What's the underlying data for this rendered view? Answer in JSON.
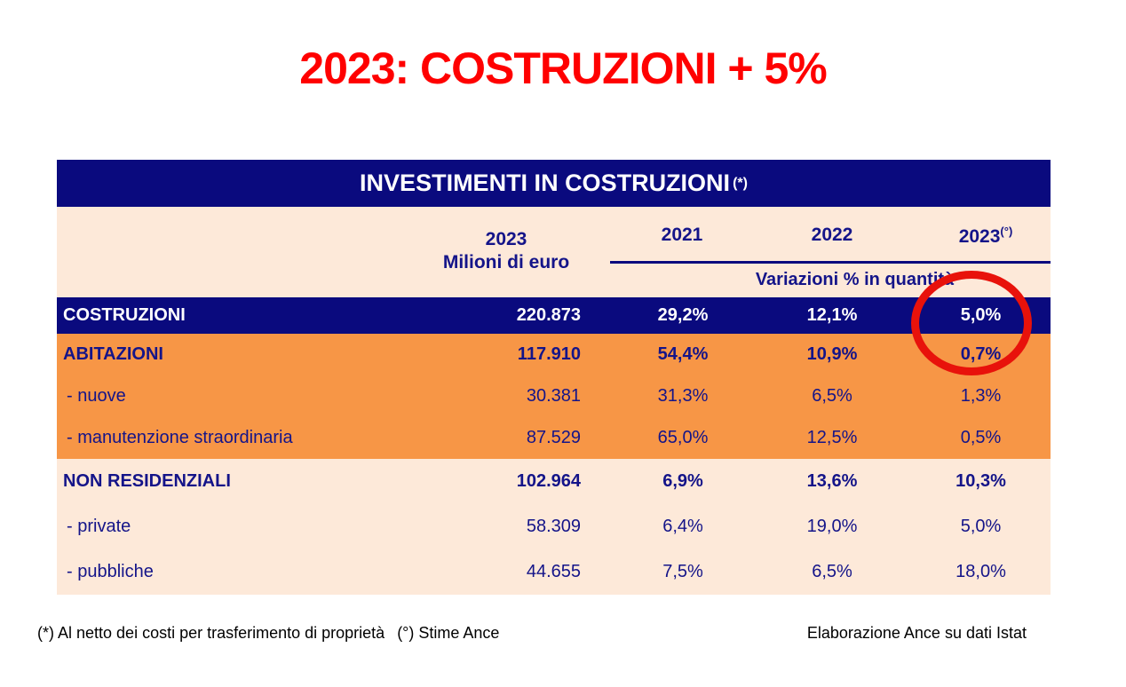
{
  "title": "2023: COSTRUZIONI + 5%",
  "table": {
    "title": "INVESTIMENTI IN COSTRUZIONI",
    "title_note": "(*)",
    "euro_header_line1": "2023",
    "euro_header_line2": "Milioni di euro",
    "year_2021": "2021",
    "year_2022": "2022",
    "year_2023": "2023",
    "year_2023_note": "(°)",
    "variation_label": "Variazioni % in quantità",
    "rows": [
      {
        "label": "COSTRUZIONI",
        "milioni": "220.873",
        "v2021": "29,2%",
        "v2022": "12,1%",
        "v2023": "5,0%"
      },
      {
        "label": "ABITAZIONI",
        "milioni": "117.910",
        "v2021": "54,4%",
        "v2022": "10,9%",
        "v2023": "0,7%"
      },
      {
        "label": "- nuove",
        "milioni": "30.381",
        "v2021": "31,3%",
        "v2022": "6,5%",
        "v2023": "1,3%"
      },
      {
        "label": "- manutenzione straordinaria",
        "milioni": "87.529",
        "v2021": "65,0%",
        "v2022": "12,5%",
        "v2023": "0,5%"
      },
      {
        "label": "NON RESIDENZIALI",
        "milioni": "102.964",
        "v2021": "6,9%",
        "v2022": "13,6%",
        "v2023": "10,3%"
      },
      {
        "label": "- private",
        "milioni": "58.309",
        "v2021": "6,4%",
        "v2022": "19,0%",
        "v2023": "5,0%"
      },
      {
        "label": "- pubbliche",
        "milioni": "44.655",
        "v2021": "7,5%",
        "v2022": "6,5%",
        "v2023": "18,0%"
      }
    ]
  },
  "annotation": {
    "circled_value": "5,0%",
    "circle_color": "#e8120b"
  },
  "footnotes": {
    "left_1": "(*) Al netto dei costi per trasferimento di proprietà",
    "left_2": "(°) Stime Ance",
    "right": "Elaborazione Ance su dati Istat"
  },
  "colors": {
    "navy": "#0a0a7e",
    "orange": "#f79646",
    "peach": "#fde9d9",
    "title_red": "#ff0000",
    "text_navy": "#141489"
  }
}
